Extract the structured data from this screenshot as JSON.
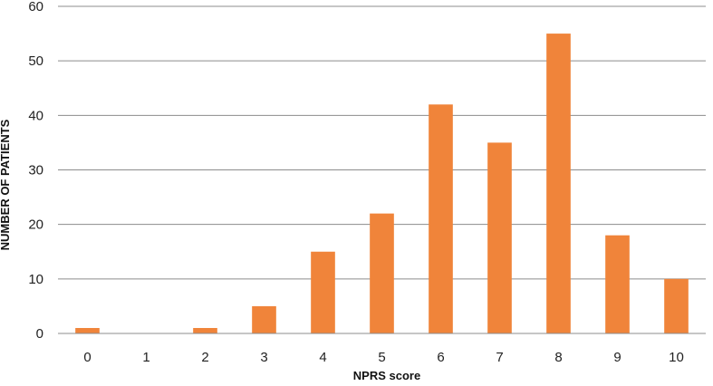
{
  "chart_data": {
    "type": "bar",
    "categories": [
      "0",
      "1",
      "2",
      "3",
      "4",
      "5",
      "6",
      "7",
      "8",
      "9",
      "10"
    ],
    "values": [
      1,
      0,
      1,
      5,
      15,
      22,
      42,
      35,
      55,
      18,
      10
    ],
    "xlabel": "NPRS score",
    "ylabel": "NUMBER OF PATIENTS",
    "ylim": [
      0,
      60
    ],
    "yticks": [
      0,
      10,
      20,
      30,
      40,
      50,
      60
    ],
    "grid": true,
    "legend": "none",
    "colors": {
      "bar": "#F0843A",
      "grid": "#8c8c8c",
      "text": "#222222"
    }
  }
}
